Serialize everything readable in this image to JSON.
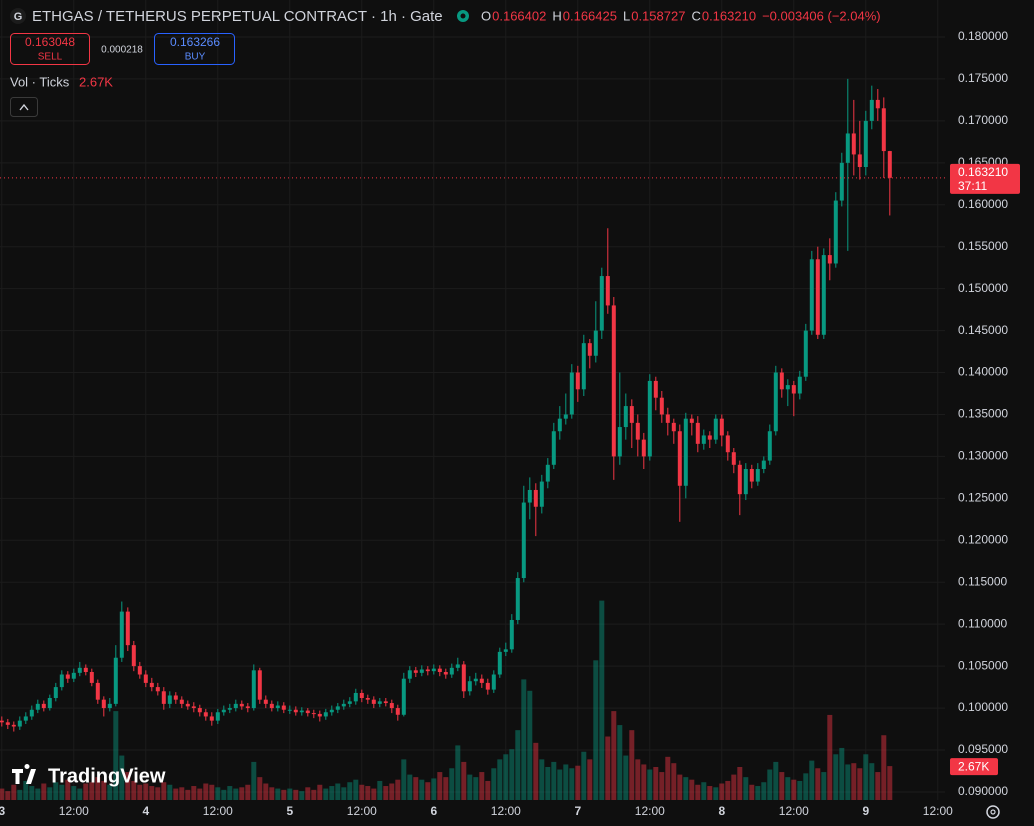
{
  "header": {
    "icon": "G",
    "title": "ETHGAS / TETHERUS PERPETUAL CONTRACT · 1h · Gate",
    "ohlc": [
      {
        "key": "O",
        "value": "0.166402"
      },
      {
        "key": "H",
        "value": "0.166425"
      },
      {
        "key": "L",
        "value": "0.158727"
      },
      {
        "key": "C",
        "value": "0.163210"
      }
    ],
    "change": "−0.003406 (−2.04%)",
    "sell": {
      "price": "0.163048",
      "label": "SELL"
    },
    "spread": "0.000218",
    "buy": {
      "price": "0.163266",
      "label": "BUY"
    },
    "volume_legend": "Vol · Ticks",
    "volume_legend_value": "2.67K",
    "logo": "TradingView"
  },
  "chart_data": {
    "type": "candlestick",
    "xlim": [
      -0.3,
      157.2
    ],
    "xticks": [
      {
        "value": 0,
        "label": "3"
      },
      {
        "value": 12,
        "label": "12:00"
      },
      {
        "value": 24,
        "label": "4"
      },
      {
        "value": 36,
        "label": "12:00"
      },
      {
        "value": 48,
        "label": "5"
      },
      {
        "value": 60,
        "label": "12:00"
      },
      {
        "value": 72,
        "label": "6"
      },
      {
        "value": 84,
        "label": "12:00"
      },
      {
        "value": 96,
        "label": "7"
      },
      {
        "value": 108,
        "label": "12:00"
      },
      {
        "value": 120,
        "label": "8"
      },
      {
        "value": 132,
        "label": "12:00"
      },
      {
        "value": 144,
        "label": "9"
      },
      {
        "value": 156,
        "label": "12:00"
      }
    ],
    "ylim": [
      0.08904,
      0.18441
    ],
    "yticks": [
      {
        "value": 0.18,
        "label": "0.180000"
      },
      {
        "value": 0.175,
        "label": "0.175000"
      },
      {
        "value": 0.17,
        "label": "0.170000"
      },
      {
        "value": 0.165,
        "label": "0.165000"
      },
      {
        "value": 0.16,
        "label": "0.160000"
      },
      {
        "value": 0.155,
        "label": "0.155000"
      },
      {
        "value": 0.15,
        "label": "0.150000"
      },
      {
        "value": 0.145,
        "label": "0.145000"
      },
      {
        "value": 0.14,
        "label": "0.140000"
      },
      {
        "value": 0.135,
        "label": "0.135000"
      },
      {
        "value": 0.13,
        "label": "0.130000"
      },
      {
        "value": 0.125,
        "label": "0.125000"
      },
      {
        "value": 0.12,
        "label": "0.120000"
      },
      {
        "value": 0.115,
        "label": "0.115000"
      },
      {
        "value": 0.11,
        "label": "0.110000"
      },
      {
        "value": 0.105,
        "label": "0.105000"
      },
      {
        "value": 0.1,
        "label": "0.100000"
      },
      {
        "value": 0.095,
        "label": "0.095000"
      },
      {
        "value": 0.09,
        "label": "0.090000"
      }
    ],
    "grid": true,
    "up_color": "#089981",
    "down_color": "#f23645",
    "open": [
      0.0985,
      0.0983,
      0.098,
      0.0978,
      0.0985,
      0.099,
      0.0998,
      0.1005,
      0.1,
      0.1012,
      0.1025,
      0.104,
      0.1035,
      0.1042,
      0.1048,
      0.1043,
      0.103,
      0.101,
      0.1,
      0.1005,
      0.106,
      0.1115,
      0.1075,
      0.105,
      0.104,
      0.103,
      0.1025,
      0.102,
      0.1005,
      0.1015,
      0.101,
      0.1005,
      0.1002,
      0.1,
      0.0995,
      0.099,
      0.0985,
      0.0995,
      0.0998,
      0.1,
      0.1005,
      0.1002,
      0.1,
      0.1045,
      0.101,
      0.1005,
      0.1,
      0.1003,
      0.0998,
      0.0998,
      0.0995,
      0.0997,
      0.0994,
      0.0993,
      0.099,
      0.0995,
      0.0998,
      0.1002,
      0.1005,
      0.1008,
      0.1018,
      0.1012,
      0.101,
      0.1005,
      0.1008,
      0.1006,
      0.1,
      0.0992,
      0.1035,
      0.1045,
      0.1042,
      0.1046,
      0.1044,
      0.1047,
      0.1043,
      0.104,
      0.1048,
      0.1052,
      0.102,
      0.1032,
      0.1035,
      0.103,
      0.1022,
      0.104,
      0.1067,
      0.107,
      0.1105,
      0.1155,
      0.1245,
      0.126,
      0.124,
      0.127,
      0.129,
      0.133,
      0.1345,
      0.135,
      0.14,
      0.138,
      0.1435,
      0.142,
      0.145,
      0.1515,
      0.148,
      0.13,
      0.1335,
      0.136,
      0.134,
      0.132,
      0.13,
      0.139,
      0.137,
      0.135,
      0.134,
      0.133,
      0.1265,
      0.1345,
      0.134,
      0.1315,
      0.1325,
      0.132,
      0.1345,
      0.1325,
      0.1305,
      0.129,
      0.1255,
      0.1285,
      0.127,
      0.1285,
      0.1295,
      0.133,
      0.14,
      0.138,
      0.1385,
      0.1375,
      0.1395,
      0.145,
      0.1535,
      0.1445,
      0.154,
      0.153,
      0.1605,
      0.165,
      0.1685,
      0.166,
      0.1645,
      0.17,
      0.1725,
      0.1715,
      0.166402
    ],
    "high": [
      0.099,
      0.0987,
      0.0984,
      0.099,
      0.0995,
      0.1003,
      0.101,
      0.1009,
      0.1016,
      0.103,
      0.1045,
      0.1044,
      0.1047,
      0.1055,
      0.1052,
      0.1047,
      0.1034,
      0.1014,
      0.1012,
      0.1075,
      0.1127,
      0.112,
      0.108,
      0.1055,
      0.1045,
      0.1036,
      0.103,
      0.1025,
      0.102,
      0.1019,
      0.1014,
      0.1009,
      0.1007,
      0.1004,
      0.0999,
      0.0995,
      0.0999,
      0.1003,
      0.1005,
      0.101,
      0.1009,
      0.1006,
      0.1052,
      0.1048,
      0.1015,
      0.1009,
      0.1008,
      0.1007,
      0.1003,
      0.1002,
      0.1001,
      0.1,
      0.0998,
      0.0997,
      0.0999,
      0.1003,
      0.1006,
      0.101,
      0.1013,
      0.1023,
      0.1022,
      0.1016,
      0.1014,
      0.1012,
      0.1012,
      0.101,
      0.1004,
      0.1042,
      0.105,
      0.1049,
      0.1051,
      0.105,
      0.1052,
      0.1051,
      0.1047,
      0.1053,
      0.106,
      0.1056,
      0.1038,
      0.1042,
      0.104,
      0.1035,
      0.1045,
      0.1072,
      0.1078,
      0.1112,
      0.1162,
      0.1265,
      0.1275,
      0.1268,
      0.1278,
      0.1298,
      0.134,
      0.136,
      0.1375,
      0.141,
      0.1408,
      0.1445,
      0.144,
      0.1485,
      0.1525,
      0.1572,
      0.149,
      0.14,
      0.1375,
      0.1368,
      0.135,
      0.1328,
      0.1398,
      0.1395,
      0.1378,
      0.1358,
      0.1345,
      0.1338,
      0.1352,
      0.135,
      0.1348,
      0.1332,
      0.133,
      0.135,
      0.135,
      0.133,
      0.131,
      0.1295,
      0.1292,
      0.129,
      0.1292,
      0.13,
      0.1338,
      0.1408,
      0.1405,
      0.1392,
      0.139,
      0.1402,
      0.1458,
      0.1545,
      0.155,
      0.1548,
      0.156,
      0.1615,
      0.1662,
      0.175,
      0.1725,
      0.17,
      0.1712,
      0.1742,
      0.1738,
      0.1728,
      0.166425
    ],
    "low": [
      0.0978,
      0.0975,
      0.0972,
      0.0974,
      0.0981,
      0.0986,
      0.0994,
      0.0996,
      0.0997,
      0.1008,
      0.1021,
      0.103,
      0.1031,
      0.1038,
      0.1039,
      0.1026,
      0.1005,
      0.099,
      0.0996,
      0.1002,
      0.1055,
      0.1068,
      0.1044,
      0.1035,
      0.1025,
      0.102,
      0.1015,
      0.0998,
      0.1,
      0.1005,
      0.1,
      0.0998,
      0.0995,
      0.099,
      0.0985,
      0.0979,
      0.0981,
      0.0991,
      0.0994,
      0.0996,
      0.0998,
      0.0995,
      0.0997,
      0.1005,
      0.1,
      0.0996,
      0.0996,
      0.0994,
      0.0993,
      0.0991,
      0.0991,
      0.099,
      0.0988,
      0.0984,
      0.0986,
      0.0991,
      0.0994,
      0.0998,
      0.1001,
      0.1004,
      0.1007,
      0.1005,
      0.1,
      0.1001,
      0.1002,
      0.0994,
      0.0985,
      0.099,
      0.103,
      0.1037,
      0.1038,
      0.1039,
      0.104,
      0.1038,
      0.1035,
      0.1036,
      0.1044,
      0.1012,
      0.1015,
      0.1027,
      0.1024,
      0.1016,
      0.1018,
      0.1036,
      0.1062,
      0.1066,
      0.11,
      0.115,
      0.1225,
      0.1205,
      0.1232,
      0.1262,
      0.1285,
      0.132,
      0.1338,
      0.1345,
      0.1365,
      0.1372,
      0.1405,
      0.1412,
      0.144,
      0.147,
      0.1272,
      0.129,
      0.132,
      0.131,
      0.13,
      0.1285,
      0.1295,
      0.1355,
      0.134,
      0.1325,
      0.1315,
      0.1222,
      0.125,
      0.1325,
      0.1305,
      0.1308,
      0.131,
      0.1315,
      0.1312,
      0.1295,
      0.128,
      0.123,
      0.1248,
      0.1262,
      0.1265,
      0.128,
      0.129,
      0.1325,
      0.137,
      0.136,
      0.1348,
      0.1368,
      0.139,
      0.1445,
      0.144,
      0.144,
      0.151,
      0.1525,
      0.1598,
      0.1545,
      0.1635,
      0.163,
      0.1635,
      0.169,
      0.17,
      0.1632,
      0.158727
    ],
    "close": [
      0.0983,
      0.098,
      0.0978,
      0.0985,
      0.099,
      0.0998,
      0.1005,
      0.1,
      0.1012,
      0.1025,
      0.104,
      0.1035,
      0.1042,
      0.1048,
      0.1043,
      0.103,
      0.101,
      0.1,
      0.1005,
      0.106,
      0.1115,
      0.1075,
      0.105,
      0.104,
      0.103,
      0.1025,
      0.102,
      0.1005,
      0.1015,
      0.101,
      0.1005,
      0.1002,
      0.1,
      0.0995,
      0.099,
      0.0985,
      0.0995,
      0.0998,
      0.1,
      0.1005,
      0.1002,
      0.1,
      0.1045,
      0.101,
      0.1005,
      0.1,
      0.1003,
      0.0998,
      0.0998,
      0.0995,
      0.0997,
      0.0994,
      0.0993,
      0.099,
      0.0995,
      0.0998,
      0.1002,
      0.1005,
      0.1008,
      0.1018,
      0.1012,
      0.101,
      0.1005,
      0.1008,
      0.1006,
      0.1,
      0.0992,
      0.1035,
      0.1045,
      0.1042,
      0.1046,
      0.1044,
      0.1047,
      0.1043,
      0.104,
      0.1048,
      0.1052,
      0.102,
      0.1032,
      0.1035,
      0.103,
      0.1022,
      0.104,
      0.1067,
      0.107,
      0.1105,
      0.1155,
      0.1245,
      0.126,
      0.124,
      0.127,
      0.129,
      0.133,
      0.1345,
      0.135,
      0.14,
      0.138,
      0.1435,
      0.142,
      0.145,
      0.1515,
      0.148,
      0.13,
      0.1335,
      0.136,
      0.134,
      0.132,
      0.13,
      0.139,
      0.137,
      0.135,
      0.134,
      0.133,
      0.1265,
      0.1345,
      0.134,
      0.1315,
      0.1325,
      0.132,
      0.1345,
      0.1325,
      0.1305,
      0.129,
      0.1255,
      0.1285,
      0.127,
      0.1285,
      0.1295,
      0.133,
      0.14,
      0.138,
      0.1385,
      0.1375,
      0.1395,
      0.145,
      0.1535,
      0.1445,
      0.154,
      0.153,
      0.1605,
      0.165,
      0.1685,
      0.166,
      0.1645,
      0.17,
      0.1725,
      0.1715,
      0.1664,
      0.16321
    ],
    "last_price": {
      "value": 0.16321,
      "label": "0.163210"
    },
    "countdown": "37:11",
    "volume": {
      "lim": [
        0,
        63000
      ],
      "last_label": "2.67K",
      "values": [
        900,
        700,
        1200,
        800,
        1500,
        1100,
        900,
        1300,
        1000,
        1400,
        1200,
        1600,
        1100,
        900,
        1300,
        1400,
        1800,
        1500,
        1200,
        7000,
        3500,
        2200,
        1500,
        1200,
        1300,
        1100,
        1000,
        1400,
        1200,
        900,
        1000,
        800,
        1100,
        900,
        1300,
        1200,
        1000,
        800,
        1100,
        900,
        1000,
        1200,
        3000,
        1800,
        1300,
        1000,
        900,
        800,
        900,
        800,
        700,
        1000,
        800,
        1200,
        900,
        1100,
        1300,
        1000,
        1400,
        1600,
        1200,
        1100,
        900,
        1500,
        1100,
        1300,
        1600,
        3200,
        2000,
        1800,
        1600,
        1400,
        1700,
        2200,
        1800,
        2500,
        4300,
        3000,
        2000,
        1800,
        2200,
        1500,
        2500,
        3200,
        3600,
        4000,
        5500,
        9500,
        8600,
        4500,
        3200,
        2600,
        3000,
        2400,
        2800,
        2500,
        2700,
        3800,
        3200,
        11000,
        15700,
        5000,
        7000,
        5900,
        3500,
        5500,
        3200,
        2800,
        2400,
        2600,
        2200,
        3400,
        2900,
        2000,
        1800,
        1600,
        1200,
        1400,
        1100,
        1000,
        1300,
        1500,
        2000,
        2600,
        1800,
        1200,
        1100,
        1400,
        2400,
        3000,
        2200,
        1800,
        1600,
        1500,
        2100,
        3100,
        2500,
        2200,
        6700,
        3600,
        4100,
        2800,
        2900,
        2500,
        3600,
        2900,
        2200,
        5100,
        2670
      ]
    }
  }
}
